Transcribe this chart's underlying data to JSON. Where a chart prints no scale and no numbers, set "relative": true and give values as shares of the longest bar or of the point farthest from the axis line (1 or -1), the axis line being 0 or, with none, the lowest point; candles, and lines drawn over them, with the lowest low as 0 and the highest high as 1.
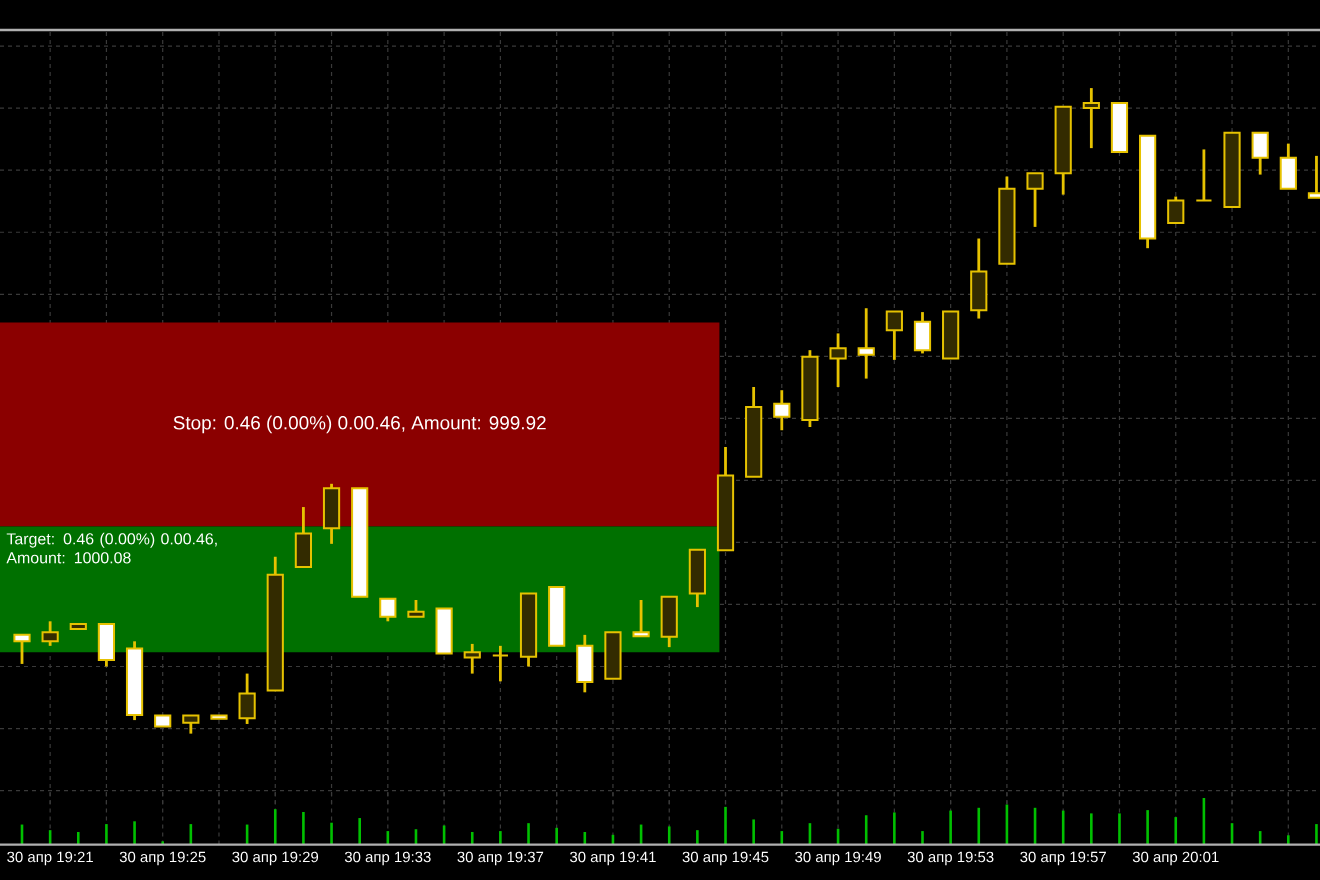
{
  "chart_data": [
    {
      "type": "candlestick",
      "relative": true,
      "color": "#e6c200",
      "grid": true,
      "categories": [
        null,
        "30 апр 19:21",
        null,
        null,
        null,
        "30 апр 19:25",
        null,
        null,
        null,
        "30 апр 19:29",
        null,
        null,
        null,
        "30 апр 19:33",
        null,
        null,
        null,
        "30 апр 19:37",
        null,
        null,
        null,
        "30 апр 19:41",
        null,
        null,
        null,
        "30 апр 19:45",
        null,
        null,
        null,
        "30 апр 19:49",
        null,
        null,
        null,
        "30 апр 19:53",
        null,
        null,
        null,
        "30 апр 19:57",
        null,
        null,
        null,
        "30 апр 20:01",
        null,
        null,
        null,
        null,
        null
      ],
      "ohlc": [
        [
          0.153,
          0.153,
          0.108,
          0.143
        ],
        [
          0.143,
          0.174,
          0.136,
          0.157
        ],
        [
          0.162,
          0.17,
          0.162,
          0.17
        ],
        [
          0.17,
          0.17,
          0.104,
          0.114
        ],
        [
          0.132,
          0.143,
          0.021,
          0.029
        ],
        [
          0.028,
          0.028,
          0.011,
          0.011
        ],
        [
          0.017,
          0.028,
          0,
          0.028
        ],
        [
          0.028,
          0.028,
          0.023,
          0.023
        ],
        [
          0.024,
          0.093,
          0.015,
          0.062
        ],
        [
          0.067,
          0.274,
          0.067,
          0.246
        ],
        [
          0.258,
          0.351,
          0.258,
          0.31
        ],
        [
          0.318,
          0.387,
          0.294,
          0.38
        ],
        [
          0.38,
          0.38,
          0.212,
          0.212
        ],
        [
          0.209,
          0.209,
          0.174,
          0.181
        ],
        [
          0.181,
          0.207,
          0.181,
          0.189
        ],
        [
          0.194,
          0.194,
          0.124,
          0.124
        ],
        [
          0.118,
          0.139,
          0.093,
          0.126
        ],
        [
          0.121,
          0.136,
          0.081,
          0.121
        ],
        [
          0.119,
          0.217,
          0.104,
          0.217
        ],
        [
          0.227,
          0.227,
          0.136,
          0.136
        ],
        [
          0.136,
          0.153,
          0.064,
          0.08
        ],
        [
          0.085,
          0.157,
          0.085,
          0.157
        ],
        [
          0.157,
          0.207,
          0.151,
          0.151
        ],
        [
          0.15,
          0.212,
          0.134,
          0.212
        ],
        [
          0.217,
          0.285,
          0.196,
          0.285
        ],
        [
          0.284,
          0.444,
          0.284,
          0.4
        ],
        [
          0.398,
          0.537,
          0.398,
          0.506
        ],
        [
          0.511,
          0.532,
          0.47,
          0.491
        ],
        [
          0.486,
          0.594,
          0.475,
          0.584
        ],
        [
          0.581,
          0.62,
          0.537,
          0.597
        ],
        [
          0.597,
          0.659,
          0.55,
          0.587
        ],
        [
          0.625,
          0.654,
          0.579,
          0.654
        ],
        [
          0.638,
          0.653,
          0.589,
          0.594
        ],
        [
          0.581,
          0.654,
          0.581,
          0.654
        ],
        [
          0.656,
          0.767,
          0.643,
          0.716
        ],
        [
          0.728,
          0.863,
          0.728,
          0.844
        ],
        [
          0.844,
          0.868,
          0.785,
          0.868
        ],
        [
          0.868,
          0.971,
          0.835,
          0.971
        ],
        [
          0.969,
          1,
          0.907,
          0.977
        ],
        [
          0.977,
          0.977,
          0.901,
          0.901
        ],
        [
          0.926,
          0.926,
          0.752,
          0.767
        ],
        [
          0.791,
          0.832,
          0.791,
          0.826
        ],
        [
          0.826,
          0.905,
          0.826,
          0.826
        ],
        [
          0.816,
          0.931,
          0.816,
          0.931
        ],
        [
          0.931,
          0.931,
          0.866,
          0.892
        ],
        [
          0.892,
          0.914,
          0.844,
          0.844
        ],
        [
          0.837,
          0.895,
          0.83,
          0.83
        ]
      ],
      "bands": [
        {
          "axis": "y",
          "from": 0.321,
          "to": 0.637,
          "label": "Stop: 0.46 (0.00%)  0.00.46, Amount: 999.92",
          "color": "#8b0000"
        },
        {
          "axis": "y",
          "from": 0.126,
          "to": 0.321,
          "label": "Target: 0.46 (0.00%)  0.00.46, Amount: 1000.08",
          "color": "#007000"
        }
      ]
    },
    {
      "type": "bar",
      "relative": true,
      "color": "#00c000",
      "grid": "x",
      "tick_labels": false,
      "categories": [
        null,
        null,
        null,
        null,
        null,
        null,
        null,
        null,
        null,
        null,
        null,
        null,
        null,
        null,
        null,
        null,
        null,
        null,
        null,
        null,
        null,
        null,
        null,
        null,
        null,
        null,
        null,
        null,
        null,
        null,
        null,
        null,
        null,
        null,
        null,
        null,
        null,
        null,
        null,
        null,
        null,
        null,
        null,
        null,
        null,
        null,
        null
      ],
      "values": [
        0.43,
        0.31,
        0.27,
        0.44,
        0.5,
        0.07,
        0.44,
        null,
        0.43,
        0.76,
        0.7,
        0.47,
        0.57,
        0.29,
        0.33,
        0.41,
        0.27,
        0.29,
        0.46,
        0.36,
        0.27,
        0.21,
        0.43,
        0.39,
        0.31,
        0.81,
        0.54,
        0.29,
        0.46,
        0.34,
        0.63,
        0.69,
        0.29,
        0.73,
        0.79,
        0.86,
        0.79,
        0.73,
        0.67,
        0.67,
        0.74,
        0.59,
        1,
        0.46,
        0.29,
        0.2,
        0.44
      ]
    }
  ]
}
